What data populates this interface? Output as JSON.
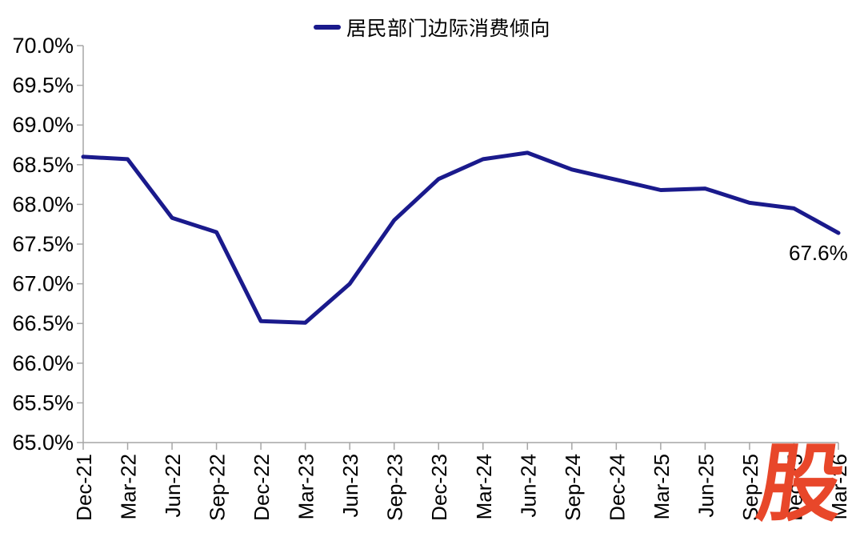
{
  "chart": {
    "legend_label": "居民部门边际消费倾向",
    "annotation_text": "67.6%",
    "watermark_text": "股",
    "colors": {
      "line": "#1A1A8C",
      "axis": "#A6A6A6",
      "label": "#000000",
      "watermark": "#E8472A"
    }
  },
  "chart_data": {
    "type": "line",
    "title": "",
    "legend": [
      "居民部门边际消费倾向"
    ],
    "legend_position": "top-center",
    "categories": [
      "Dec-21",
      "Mar-22",
      "Jun-22",
      "Sep-22",
      "Dec-22",
      "Mar-23",
      "Jun-23",
      "Sep-23",
      "Dec-23",
      "Mar-24",
      "Jun-24",
      "Sep-24",
      "Dec-24",
      "Mar-25",
      "Jun-25",
      "Sep-25",
      "Dec-25",
      "Mar-26"
    ],
    "values": [
      68.6,
      68.57,
      67.83,
      67.65,
      66.53,
      66.51,
      67.0,
      67.8,
      68.32,
      68.57,
      68.65,
      68.44,
      68.31,
      68.18,
      68.2,
      68.02,
      67.95,
      67.64
    ],
    "ylim": [
      65.0,
      70.0
    ],
    "ytick_step": 0.5,
    "ytick_labels": [
      "70.0%",
      "69.5%",
      "69.0%",
      "68.5%",
      "68.0%",
      "67.5%",
      "67.0%",
      "66.5%",
      "66.0%",
      "65.5%",
      "65.0%"
    ],
    "xlabel": "",
    "ylabel": "",
    "grid": false,
    "annotation": {
      "text": "67.6%",
      "target_category": "Mar-26",
      "target_value": 67.64
    }
  }
}
